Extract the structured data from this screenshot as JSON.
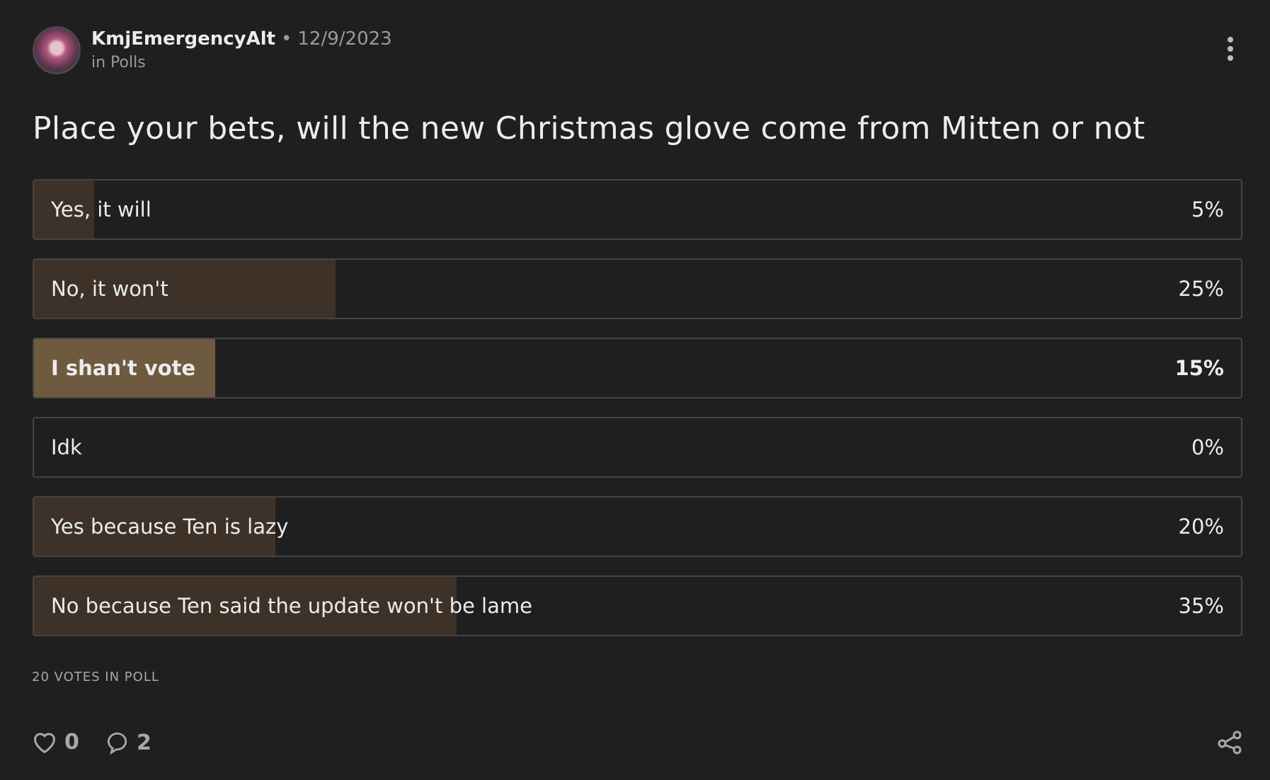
{
  "post": {
    "author": "KmjEmergencyAlt",
    "separator": "•",
    "date": "12/9/2023",
    "category": "in Polls",
    "title": "Place your bets, will the new Christmas glove come from Mitten or not"
  },
  "poll": {
    "options": [
      {
        "label": "Yes, it will",
        "percent_label": "5%",
        "percent": 5,
        "voted": false
      },
      {
        "label": "No, it won't",
        "percent_label": "25%",
        "percent": 25,
        "voted": false
      },
      {
        "label": "I shan't vote",
        "percent_label": "15%",
        "percent": 15,
        "voted": true
      },
      {
        "label": "Idk",
        "percent_label": "0%",
        "percent": 0,
        "voted": false
      },
      {
        "label": "Yes because Ten is lazy",
        "percent_label": "20%",
        "percent": 20,
        "voted": false
      },
      {
        "label": "No because Ten said the update won't be lame",
        "percent_label": "35%",
        "percent": 35,
        "voted": false
      }
    ],
    "total_votes": "20 VOTES IN POLL"
  },
  "footer": {
    "likes": "0",
    "comments": "2"
  },
  "colors": {
    "background": "#1f1f1f",
    "fill": "#3e3228",
    "fill_voted": "#6e5a3f",
    "border": "#444444"
  }
}
